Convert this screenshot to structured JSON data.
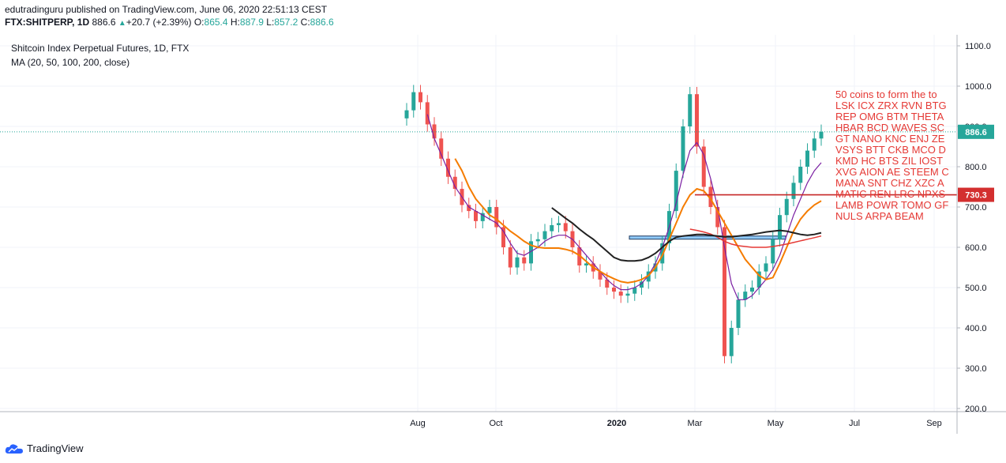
{
  "header": {
    "publisher": "edutradinguru published on TradingView.com, June 06, 2020 22:51:13 CEST",
    "symbol": "FTX:SHITPERP, 1D",
    "last": "886.6",
    "change_arrow": "▲",
    "change": "+20.7 (+2.39%)",
    "o_label": "O:",
    "o": "865.4",
    "h_label": "H:",
    "h": "887.9",
    "l_label": "L:",
    "l": "857.2",
    "c_label": "C:",
    "c": "886.6"
  },
  "legend": {
    "title": "Shitcoin Index Perpetual Futures, 1D, FTX",
    "ma": "MA (20, 50, 100, 200, close)"
  },
  "note_lines": [
    "50 coins to form the to",
    "LSK ICX ZRX RVN BTG",
    "REP OMG BTM THETA",
    "HBAR BCD WAVES SC",
    "GT NANO KNC ENJ ZE",
    "VSYS BTT CKB MCO D",
    "KMD HC BTS ZIL IOST",
    "XVG AION AE STEEM C",
    "MANA SNT CHZ XZC A",
    "MATIC REN LRC NPXS",
    "LAMB POWR TOMO GF",
    "NULS ARPA BEAM"
  ],
  "footer": {
    "brand": "TradingView"
  },
  "colors": {
    "up": "#26a69a",
    "down": "#ef5350",
    "ma20": "#7b1fa2",
    "ma50": "#f57c00",
    "ma100": "#e53935",
    "ma200": "#212121",
    "hline": "#c62828",
    "zone": "#90caf9",
    "price_badge": "#26a69a",
    "level_badge": "#d32f2f"
  },
  "chart_data": {
    "type": "candlestick",
    "title": "Shitcoin Index Perpetual Futures, 1D, FTX",
    "ylim": [
      200,
      1100
    ],
    "y_ticks": [
      "1100.0",
      "1000.0",
      "900.0",
      "800.0",
      "700.0",
      "600.0",
      "500.0",
      "400.0",
      "300.0",
      "200.0"
    ],
    "x_ticks": [
      "Aug",
      "Oct",
      "2020",
      "Mar",
      "May",
      "Jul",
      "Sep"
    ],
    "price_label": "886.6",
    "level_label": "730.3",
    "level_value": 730.3,
    "support_zone": [
      623,
      628
    ],
    "series": [
      {
        "name": "price",
        "values": [
          940,
          985,
          960,
          905,
          870,
          820,
          775,
          745,
          705,
          690,
          665,
          685,
          700,
          650,
          600,
          550,
          575,
          560,
          615,
          620,
          640,
          655,
          660,
          640,
          600,
          555,
          560,
          540,
          520,
          500,
          490,
          480,
          485,
          500,
          515,
          540,
          560,
          610,
          690,
          790,
          900,
          980,
          850,
          750,
          700,
          650,
          330,
          400,
          470,
          490,
          500,
          540,
          560,
          620,
          680,
          720,
          760,
          800,
          840,
          870,
          886.6
        ]
      },
      {
        "name": "MA 20",
        "values": [
          null,
          null,
          null,
          930,
          870,
          830,
          790,
          750,
          725,
          700,
          690,
          680,
          670,
          660,
          640,
          610,
          585,
          580,
          590,
          600,
          615,
          625,
          630,
          630,
          620,
          600,
          580,
          560,
          540,
          520,
          505,
          495,
          495,
          500,
          510,
          530,
          560,
          600,
          650,
          710,
          780,
          840,
          860,
          830,
          770,
          700,
          600,
          510,
          470,
          470,
          480,
          500,
          520,
          545,
          580,
          630,
          680,
          720,
          760,
          790,
          810
        ]
      },
      {
        "name": "MA 50",
        "values": [
          null,
          null,
          null,
          null,
          null,
          null,
          null,
          820,
          790,
          750,
          720,
          700,
          680,
          670,
          655,
          640,
          628,
          615,
          605,
          600,
          598,
          598,
          598,
          595,
          590,
          580,
          565,
          550,
          540,
          530,
          522,
          515,
          512,
          515,
          520,
          530,
          550,
          580,
          620,
          660,
          700,
          730,
          745,
          740,
          720,
          690,
          660,
          630,
          600,
          570,
          550,
          530,
          520,
          525,
          560,
          600,
          640,
          670,
          690,
          705,
          715
        ]
      },
      {
        "name": "MA 100",
        "values": [
          null,
          null,
          null,
          null,
          null,
          null,
          null,
          null,
          null,
          null,
          null,
          null,
          null,
          null,
          null,
          null,
          null,
          null,
          null,
          null,
          null,
          null,
          null,
          null,
          null,
          null,
          null,
          null,
          null,
          null,
          null,
          null,
          null,
          null,
          null,
          null,
          null,
          null,
          null,
          null,
          null,
          645,
          642,
          638,
          633,
          625,
          615,
          608,
          604,
          602,
          600,
          600,
          600,
          602,
          605,
          608,
          612,
          616,
          620,
          624,
          628
        ]
      },
      {
        "name": "MA 200",
        "values": [
          null,
          null,
          null,
          null,
          null,
          null,
          null,
          null,
          null,
          null,
          null,
          null,
          null,
          null,
          null,
          null,
          null,
          null,
          null,
          null,
          null,
          698,
          685,
          672,
          660,
          645,
          632,
          620,
          605,
          590,
          575,
          568,
          566,
          566,
          568,
          575,
          585,
          600,
          615,
          625,
          628,
          630,
          632,
          632,
          630,
          628,
          626,
          626,
          628,
          630,
          632,
          635,
          638,
          640,
          642,
          640,
          636,
          632,
          630,
          632,
          636
        ]
      }
    ]
  }
}
